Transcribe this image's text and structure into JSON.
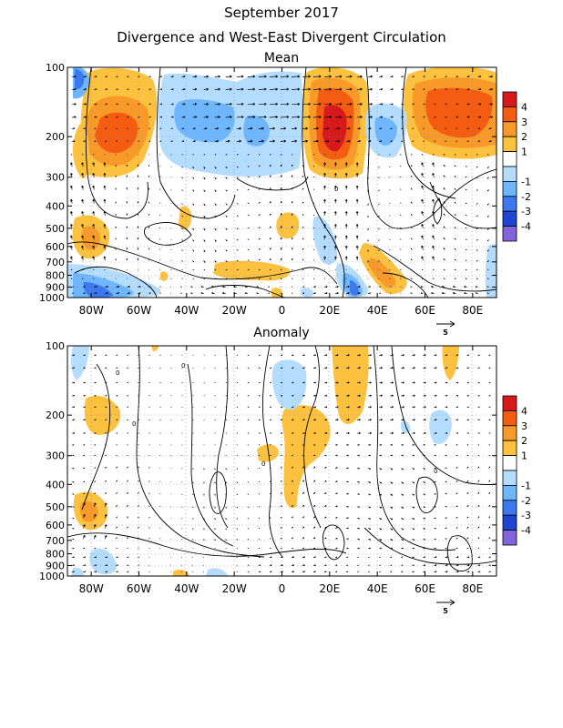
{
  "header": {
    "title": "September 2017",
    "subtitle": "Divergence and West-East Divergent Circulation"
  },
  "colors": {
    "scale": [
      "#d7191c",
      "#f45c11",
      "#f89a2a",
      "#fcc13e",
      "#ffffff",
      "#b4dcff",
      "#6eb6ff",
      "#3c78f0",
      "#1e46d2",
      "#8264dc"
    ]
  },
  "chart_data": [
    {
      "type": "heatmap",
      "title": "Mean",
      "xlim": [
        -90,
        90
      ],
      "ylim": [
        1000,
        100
      ],
      "yscale": "log",
      "x_ticks": [
        "80W",
        "60W",
        "40W",
        "20W",
        "0",
        "20E",
        "40E",
        "60E",
        "80E"
      ],
      "x_tick_values": [
        -80,
        -60,
        -40,
        -20,
        0,
        20,
        40,
        60,
        80
      ],
      "y_ticks": [
        "100",
        "200",
        "300",
        "400",
        "500",
        "600",
        "700",
        "800",
        "900",
        "1000"
      ],
      "y_tick_values": [
        100,
        200,
        300,
        400,
        500,
        600,
        700,
        800,
        900,
        1000
      ],
      "grid": "dotted",
      "vector_reference": "5",
      "legend": {
        "placement": "right",
        "labels": [
          "4",
          "3",
          "2",
          "1",
          "-1",
          "-2",
          "-3",
          "-4"
        ]
      }
    },
    {
      "type": "heatmap",
      "title": "Anomaly",
      "xlim": [
        -90,
        90
      ],
      "ylim": [
        1000,
        100
      ],
      "yscale": "log",
      "x_ticks": [
        "80W",
        "60W",
        "40W",
        "20W",
        "0",
        "20E",
        "40E",
        "60E",
        "80E"
      ],
      "x_tick_values": [
        -80,
        -60,
        -40,
        -20,
        0,
        20,
        40,
        60,
        80
      ],
      "y_ticks": [
        "100",
        "200",
        "300",
        "400",
        "500",
        "600",
        "700",
        "800",
        "900",
        "1000"
      ],
      "y_tick_values": [
        100,
        200,
        300,
        400,
        500,
        600,
        700,
        800,
        900,
        1000
      ],
      "grid": "dotted",
      "vector_reference": "5",
      "legend": {
        "placement": "right",
        "labels": [
          "4",
          "3",
          "2",
          "1",
          "-1",
          "-2",
          "-3",
          "-4"
        ]
      }
    }
  ]
}
